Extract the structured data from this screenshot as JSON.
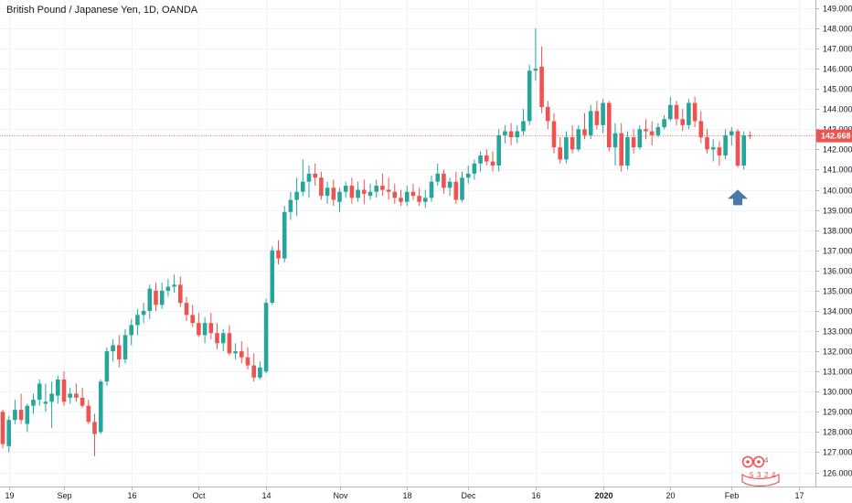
{
  "chart_data": {
    "type": "candlestick",
    "title": "British Pound / Japanese Yen, 1D, OANDA",
    "y_ticks": [
      "126.000",
      "127.000",
      "128.000",
      "129.000",
      "130.000",
      "131.000",
      "132.000",
      "133.000",
      "134.000",
      "135.000",
      "136.000",
      "137.000",
      "138.000",
      "139.000",
      "140.000",
      "141.000",
      "142.000",
      "143.000",
      "144.000",
      "145.000",
      "146.000",
      "147.000",
      "148.000",
      "149.000"
    ],
    "x_ticks": [
      {
        "label": "19",
        "index": 1
      },
      {
        "label": "Sep",
        "index": 10
      },
      {
        "label": "16",
        "index": 21
      },
      {
        "label": "Oct",
        "index": 32
      },
      {
        "label": "14",
        "index": 43
      },
      {
        "label": "Nov",
        "index": 55
      },
      {
        "label": "18",
        "index": 66
      },
      {
        "label": "Dec",
        "index": 76
      },
      {
        "label": "16",
        "index": 87
      },
      {
        "label": "2020",
        "index": 98
      },
      {
        "label": "20",
        "index": 109
      },
      {
        "label": "Feb",
        "index": 119
      },
      {
        "label": "17",
        "index": 130
      }
    ],
    "ylim": [
      125.3,
      149.4
    ],
    "current_price": "142.668",
    "colors": {
      "up": "#26a69a",
      "down": "#ef5350",
      "grid": "#f0f3fa",
      "price_line": "#ef5350",
      "arrow": "#4a78a8"
    },
    "candles": [
      [
        129.0,
        129.1,
        127.2,
        127.4
      ],
      [
        127.3,
        128.8,
        127.0,
        128.6
      ],
      [
        128.6,
        129.6,
        128.4,
        129.1
      ],
      [
        129.1,
        129.9,
        128.4,
        128.6
      ],
      [
        128.4,
        129.4,
        128.0,
        129.3
      ],
      [
        129.3,
        129.9,
        128.9,
        129.6
      ],
      [
        129.6,
        130.6,
        129.3,
        130.4
      ],
      [
        129.4,
        130.4,
        129.0,
        129.5
      ],
      [
        129.5,
        130.5,
        128.2,
        129.9
      ],
      [
        129.8,
        130.8,
        129.4,
        130.6
      ],
      [
        130.6,
        131.0,
        129.3,
        129.5
      ],
      [
        129.7,
        130.2,
        129.4,
        129.9
      ],
      [
        129.9,
        130.4,
        129.5,
        129.7
      ],
      [
        129.7,
        130.2,
        129.2,
        129.3
      ],
      [
        129.3,
        129.6,
        128.4,
        128.5
      ],
      [
        128.5,
        128.9,
        126.8,
        127.9
      ],
      [
        128.0,
        130.6,
        127.9,
        130.5
      ],
      [
        130.5,
        132.2,
        130.3,
        132.0
      ],
      [
        132.0,
        132.6,
        131.5,
        132.3
      ],
      [
        132.3,
        132.8,
        131.2,
        131.6
      ],
      [
        131.6,
        133.1,
        131.4,
        132.8
      ],
      [
        132.8,
        133.6,
        132.3,
        133.3
      ],
      [
        133.3,
        134.1,
        132.8,
        133.8
      ],
      [
        133.8,
        134.4,
        133.4,
        134.0
      ],
      [
        134.0,
        135.3,
        133.6,
        135.1
      ],
      [
        135.0,
        135.4,
        134.0,
        134.3
      ],
      [
        134.3,
        135.4,
        134.1,
        135.0
      ],
      [
        135.0,
        135.6,
        134.7,
        135.2
      ],
      [
        135.2,
        135.8,
        134.9,
        135.3
      ],
      [
        135.3,
        135.7,
        134.2,
        134.4
      ],
      [
        134.4,
        134.7,
        133.5,
        133.8
      ],
      [
        133.8,
        134.3,
        133.2,
        133.4
      ],
      [
        133.4,
        133.9,
        132.7,
        132.8
      ],
      [
        132.8,
        133.7,
        132.4,
        133.4
      ],
      [
        133.4,
        133.9,
        132.6,
        132.9
      ],
      [
        132.9,
        133.4,
        132.1,
        132.4
      ],
      [
        132.4,
        133.1,
        132.0,
        132.9
      ],
      [
        132.9,
        133.3,
        131.8,
        131.9
      ],
      [
        131.9,
        132.4,
        131.6,
        132.0
      ],
      [
        132.0,
        132.5,
        131.4,
        131.7
      ],
      [
        131.7,
        132.2,
        131.1,
        131.3
      ],
      [
        131.3,
        131.9,
        130.5,
        130.7
      ],
      [
        130.7,
        131.5,
        130.6,
        131.2
      ],
      [
        131.0,
        134.6,
        130.9,
        134.4
      ],
      [
        134.4,
        137.2,
        134.3,
        137.0
      ],
      [
        137.0,
        137.5,
        136.3,
        136.6
      ],
      [
        136.6,
        139.2,
        136.4,
        138.9
      ],
      [
        138.9,
        139.9,
        138.5,
        139.5
      ],
      [
        139.5,
        140.6,
        138.7,
        139.9
      ],
      [
        139.9,
        141.5,
        139.7,
        140.4
      ],
      [
        140.4,
        141.2,
        139.6,
        140.8
      ],
      [
        140.8,
        141.3,
        140.2,
        140.6
      ],
      [
        140.6,
        140.9,
        139.5,
        139.7
      ],
      [
        139.7,
        140.4,
        139.3,
        140.1
      ],
      [
        140.1,
        140.5,
        139.2,
        139.5
      ],
      [
        139.4,
        140.1,
        138.9,
        139.9
      ],
      [
        139.9,
        140.4,
        139.6,
        140.2
      ],
      [
        140.2,
        140.6,
        139.3,
        139.6
      ],
      [
        139.6,
        140.4,
        139.4,
        140.0
      ],
      [
        140.0,
        140.5,
        139.3,
        139.8
      ],
      [
        139.7,
        140.3,
        139.5,
        139.9
      ],
      [
        139.9,
        140.5,
        139.6,
        140.2
      ],
      [
        140.2,
        140.8,
        139.7,
        140.0
      ],
      [
        140.0,
        140.6,
        139.5,
        139.9
      ],
      [
        139.9,
        140.3,
        139.3,
        139.6
      ],
      [
        139.6,
        140.0,
        139.2,
        139.4
      ],
      [
        139.4,
        140.2,
        139.2,
        139.9
      ],
      [
        139.9,
        140.3,
        139.5,
        139.7
      ],
      [
        139.7,
        140.1,
        139.2,
        139.4
      ],
      [
        139.4,
        140.0,
        139.1,
        139.6
      ],
      [
        139.6,
        140.7,
        139.4,
        140.4
      ],
      [
        140.4,
        141.3,
        140.2,
        140.8
      ],
      [
        140.8,
        141.0,
        139.8,
        140.1
      ],
      [
        140.1,
        140.6,
        139.7,
        140.4
      ],
      [
        140.4,
        140.9,
        139.3,
        139.5
      ],
      [
        139.5,
        140.9,
        139.4,
        140.6
      ],
      [
        140.6,
        141.2,
        140.3,
        140.8
      ],
      [
        140.8,
        141.5,
        140.5,
        141.3
      ],
      [
        141.3,
        141.9,
        140.9,
        141.7
      ],
      [
        141.7,
        142.0,
        141.2,
        141.4
      ],
      [
        141.4,
        141.9,
        140.9,
        141.2
      ],
      [
        141.2,
        143.0,
        140.9,
        142.7
      ],
      [
        142.7,
        143.2,
        142.3,
        142.9
      ],
      [
        142.9,
        143.3,
        142.2,
        142.6
      ],
      [
        142.6,
        143.2,
        142.3,
        142.9
      ],
      [
        142.9,
        144.0,
        142.7,
        143.4
      ],
      [
        143.4,
        146.2,
        143.2,
        145.9
      ],
      [
        145.9,
        148.0,
        145.4,
        146.0
      ],
      [
        146.1,
        147.1,
        143.8,
        144.1
      ],
      [
        144.1,
        144.4,
        143.0,
        143.4
      ],
      [
        143.4,
        143.8,
        141.8,
        142.1
      ],
      [
        142.1,
        142.6,
        141.3,
        141.5
      ],
      [
        141.5,
        142.9,
        141.3,
        142.6
      ],
      [
        142.6,
        143.2,
        141.8,
        142.0
      ],
      [
        142.0,
        143.2,
        141.9,
        143.0
      ],
      [
        143.0,
        143.8,
        142.5,
        142.7
      ],
      [
        142.7,
        144.2,
        142.5,
        143.9
      ],
      [
        143.9,
        144.4,
        143.0,
        143.2
      ],
      [
        143.2,
        144.5,
        142.8,
        144.3
      ],
      [
        144.3,
        144.4,
        141.9,
        142.1
      ],
      [
        142.1,
        143.3,
        141.2,
        142.8
      ],
      [
        142.8,
        143.3,
        140.9,
        141.2
      ],
      [
        141.2,
        142.9,
        141.0,
        142.6
      ],
      [
        142.6,
        143.0,
        141.8,
        142.1
      ],
      [
        142.1,
        143.2,
        142.0,
        143.0
      ],
      [
        143.0,
        143.5,
        142.5,
        142.9
      ],
      [
        142.9,
        143.4,
        142.2,
        142.7
      ],
      [
        142.7,
        143.3,
        142.6,
        143.1
      ],
      [
        143.1,
        143.7,
        143.0,
        143.5
      ],
      [
        143.5,
        144.6,
        143.4,
        144.2
      ],
      [
        144.2,
        144.4,
        143.2,
        143.5
      ],
      [
        143.5,
        144.0,
        142.9,
        143.2
      ],
      [
        143.2,
        144.5,
        143.0,
        144.3
      ],
      [
        144.3,
        144.6,
        143.1,
        143.4
      ],
      [
        143.4,
        143.9,
        142.3,
        142.6
      ],
      [
        142.6,
        143.0,
        141.8,
        142.0
      ],
      [
        142.0,
        142.5,
        141.4,
        142.1
      ],
      [
        142.1,
        142.4,
        141.2,
        141.7
      ],
      [
        141.7,
        143.0,
        141.5,
        142.7
      ],
      [
        142.7,
        143.1,
        142.2,
        142.9
      ],
      [
        142.9,
        143.0,
        141.1,
        141.2
      ],
      [
        141.2,
        142.9,
        141.0,
        142.7
      ],
      [
        142.7,
        142.9,
        142.5,
        142.68
      ]
    ],
    "annotation": {
      "type": "arrow-up",
      "index": 120,
      "y": 139.6
    }
  },
  "watermark": {
    "digits": [
      "4",
      "5",
      "3",
      "2",
      "4"
    ],
    "icon": "tradingview-ideas-logo"
  }
}
